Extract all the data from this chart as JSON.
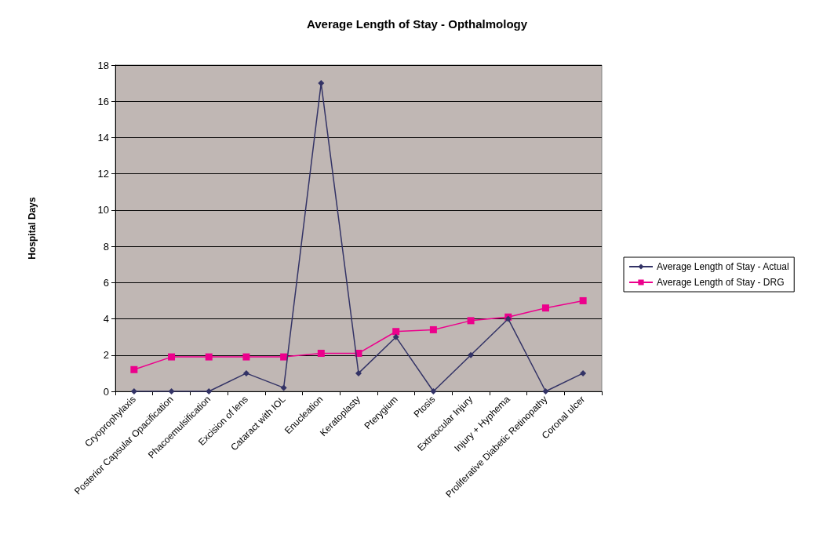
{
  "chart_data": {
    "type": "line",
    "title": "Average Length of Stay - Opthalmology",
    "ylabel": "Hospital Days",
    "categories": [
      "Cryoprophylaxis",
      "Posterior Capsular Opacification",
      "Phacoemulsification",
      "Excision of lens",
      "Cataract with IOL",
      "Enucleation",
      "Keratoplasty",
      "Pterygium",
      "Ptosis",
      "Extraocular Injury",
      "Injury + Hyphema",
      "Proliferative Diabetic Retinopathy",
      "Coronal ulcer"
    ],
    "series": [
      {
        "name": "Average Length of Stay - Actual",
        "color": "#333366",
        "marker": "diamond",
        "values": [
          0,
          0,
          0,
          1,
          0.2,
          17,
          1,
          3,
          0,
          2,
          4,
          0,
          1
        ]
      },
      {
        "name": "Average Length of Stay - DRG",
        "color": "#ec008c",
        "marker": "square",
        "values": [
          1.2,
          1.9,
          1.9,
          1.9,
          1.9,
          2.1,
          2.1,
          3.3,
          3.4,
          3.9,
          4.1,
          4.6,
          5
        ]
      }
    ],
    "ylim": [
      0,
      18
    ],
    "yticks": [
      0,
      2,
      4,
      6,
      8,
      10,
      12,
      14,
      16,
      18
    ],
    "grid": "y",
    "legend": "right"
  }
}
